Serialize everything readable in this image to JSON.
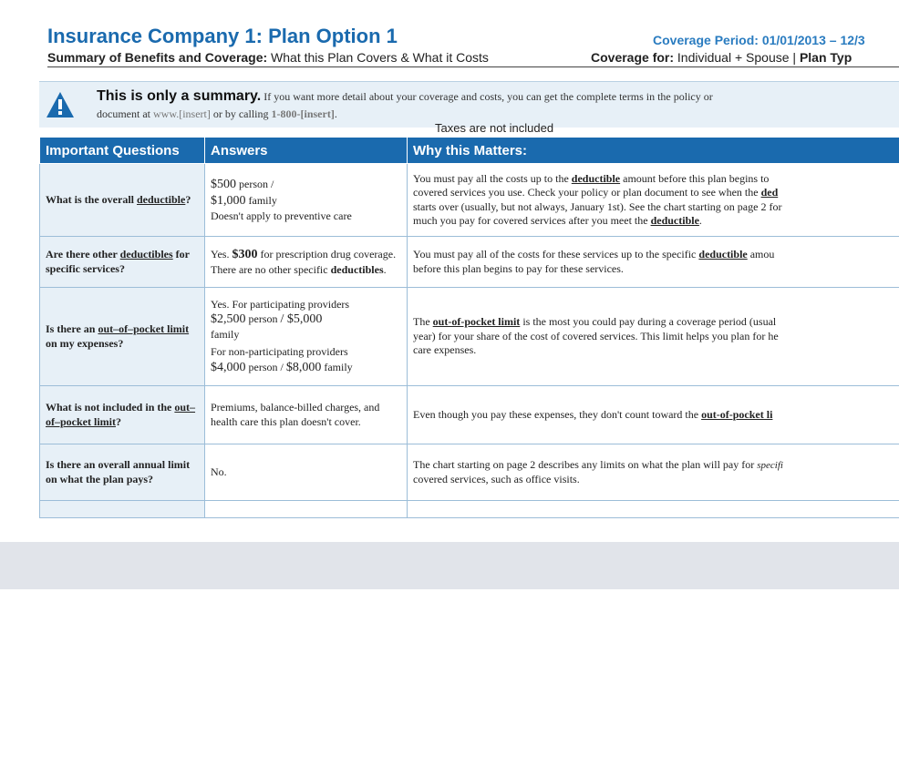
{
  "header": {
    "title": "Insurance Company 1: Plan Option 1",
    "coverage_period": "Coverage Period: 01/01/2013 – 12/3",
    "subtitle_bold": "Summary of Benefits and Coverage:",
    "subtitle_rest": " What this Plan Covers & What it Costs",
    "coverage_for_bold": "Coverage for:",
    "coverage_for_rest": " Individual + Spouse | ",
    "plan_type_bold": "Plan Typ"
  },
  "notice": {
    "title": "This is only a summary.",
    "line1_rest": " If you want more detail about your coverage and costs, you can get the complete terms in the policy or",
    "line2_a": "document at ",
    "line2_www": "www.[insert]",
    "line2_b": " or by calling ",
    "line2_phone": "1-800-[insert]",
    "line2_c": "."
  },
  "taxes_note": "Taxes are not included",
  "table": {
    "headers": [
      "Important Questions",
      "Answers",
      "Why this Matters:"
    ],
    "rows": [
      {
        "q_a": "What is the overall ",
        "q_term": "deductible",
        "q_b": "?",
        "ans_amt1": "$500",
        "ans_unit1": " person /",
        "ans_amt2": "$1,000",
        "ans_unit2": " family",
        "ans_note": "Doesn't apply to preventive care",
        "why_a": "You must pay all the costs up to the ",
        "why_term1": "deductible",
        "why_b": " amount before this plan begins to ",
        "why_c": "covered services you use. Check your policy or plan document to see when the ",
        "why_term2": "ded",
        "why_d": "starts over (usually, but not always, January 1st). See the chart starting on page 2 for",
        "why_e": "much you pay for covered services after you meet the ",
        "why_term3": "deductible",
        "why_f": "."
      },
      {
        "q_a": "Are there other ",
        "q_term": "deductibles",
        "q_b": " for specific services?",
        "ans_a": "Yes. ",
        "ans_amt": "$300",
        "ans_b": " for prescription drug coverage.  There are no other specific ",
        "ans_term": "deductibles",
        "ans_c": ".",
        "why_a": "You must pay all of the costs for these services up to the specific ",
        "why_term": "deductible",
        "why_b": " amou",
        "why_c": "before this plan begins to pay for these services."
      },
      {
        "q_a": "Is there an ",
        "q_term": "out–of–pocket limit",
        "q_b": " on my expenses?",
        "ans_line1": "Yes. For participating providers",
        "ans_amt1": "$2,500",
        "ans_unit1": " person ",
        "ans_sep1": "/ $5,000",
        "ans_unit2": "family",
        "ans_line2": "For non-participating providers",
        "ans_amt3": "$4,000",
        "ans_unit3": " person / ",
        "ans_amt4": "$8,000",
        "ans_unit4": " family",
        "why_a": "The ",
        "why_term": "out-of-pocket limit",
        "why_b": " is the most you could pay during a coverage period (usual",
        "why_c": "year) for your share of the cost of covered services. This limit helps you plan for he",
        "why_d": "care expenses."
      },
      {
        "q_a": "What is not included in the ",
        "q_term": "out–of–pocket limit",
        "q_b": "?",
        "ans": "Premiums, balance-billed charges, and health care this plan doesn't cover.",
        "why_a": "Even though you pay these expenses, they don't count toward the ",
        "why_term": "out-of-pocket li"
      },
      {
        "q": "Is there an overall annual limit on what the plan pays?",
        "ans": "No.",
        "why_a": "The chart starting on page 2 describes any limits on what the plan will pay for ",
        "why_spec": "specifi",
        "why_b": "covered services, such as office visits."
      }
    ]
  }
}
